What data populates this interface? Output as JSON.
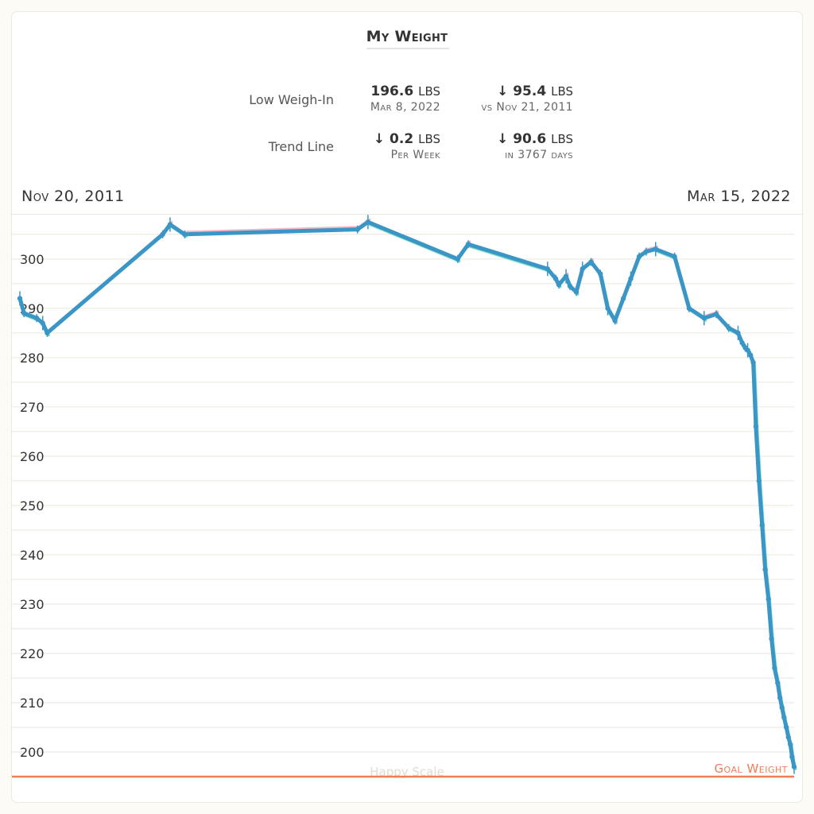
{
  "title": "My Weight",
  "stats": {
    "low_label": "Low Weigh-In",
    "low_value": "196.6",
    "low_unit": "LBS",
    "low_date": "Mar 8, 2022",
    "low_change": "↓ 95.4",
    "low_change_unit": "LBS",
    "low_change_ref": "vs Nov 21, 2011",
    "trend_label": "Trend Line",
    "trend_rate": "↓ 0.2",
    "trend_rate_unit": "LBS",
    "trend_rate_period": "Per Week",
    "trend_total": "↓ 90.6",
    "trend_total_unit": "LBS",
    "trend_total_span": "in 3767 days"
  },
  "date_range": {
    "start": "Nov 20, 2011",
    "end": "Mar 15, 2022"
  },
  "colors": {
    "trend": "#3a96c6",
    "up_fill": "#f4b6c8",
    "down_fill": "#7fdcc0",
    "goal": "#f07e52",
    "grid": "#e9e6dc"
  },
  "chart_data": {
    "type": "line",
    "title": "My Weight",
    "xlabel": "",
    "ylabel": "",
    "x_range": [
      "2011-11-20",
      "2022-03-15"
    ],
    "ylim": [
      195,
      309
    ],
    "yticks": [
      200,
      210,
      220,
      230,
      240,
      250,
      260,
      270,
      280,
      290,
      300
    ],
    "grid": true,
    "goal": {
      "label": "Goal Weight",
      "value": 195
    },
    "watermark": "Happy Scale",
    "series": [
      {
        "x": [
          "2011-11-20",
          "2011-12-10",
          "2012-02-10",
          "2012-03-10",
          "2012-04-01",
          "2013-10-15",
          "2013-11-20",
          "2014-01-30",
          "2016-05-20",
          "2016-07-10",
          "2017-09-20",
          "2017-11-10",
          "2018-12-01",
          "2019-01-10",
          "2019-01-25",
          "2019-03-01",
          "2019-03-20",
          "2019-04-20",
          "2019-05-20",
          "2019-07-01",
          "2019-08-15",
          "2019-09-20",
          "2019-10-25",
          "2019-12-05",
          "2020-01-10",
          "2020-02-20",
          "2020-03-25",
          "2020-05-10",
          "2020-08-10",
          "2020-10-20",
          "2021-01-01",
          "2021-03-01",
          "2021-05-01",
          "2021-06-15",
          "2021-07-05",
          "2021-07-20",
          "2021-08-01",
          "2021-08-15",
          "2021-08-28",
          "2021-09-10",
          "2021-09-25",
          "2021-10-10",
          "2021-10-25",
          "2021-11-10",
          "2021-11-25",
          "2021-12-10",
          "2021-12-25",
          "2022-01-05",
          "2022-01-15",
          "2022-01-25",
          "2022-02-05",
          "2022-02-15",
          "2022-02-25",
          "2022-03-05",
          "2022-03-15"
        ],
        "y": [
          292,
          289,
          288,
          287,
          285,
          305,
          307,
          305,
          306,
          307.5,
          300,
          303,
          298,
          296,
          294.8,
          296.5,
          294.5,
          293.3,
          298,
          299.4,
          297,
          290,
          287.5,
          292,
          296,
          300.5,
          301.5,
          302,
          300.5,
          290,
          288,
          288.8,
          286,
          285,
          283,
          282,
          281.5,
          280.5,
          279,
          266,
          255,
          246,
          237,
          231,
          223,
          217,
          214,
          211,
          209,
          207,
          205,
          203,
          201.5,
          199,
          197
        ]
      }
    ]
  }
}
